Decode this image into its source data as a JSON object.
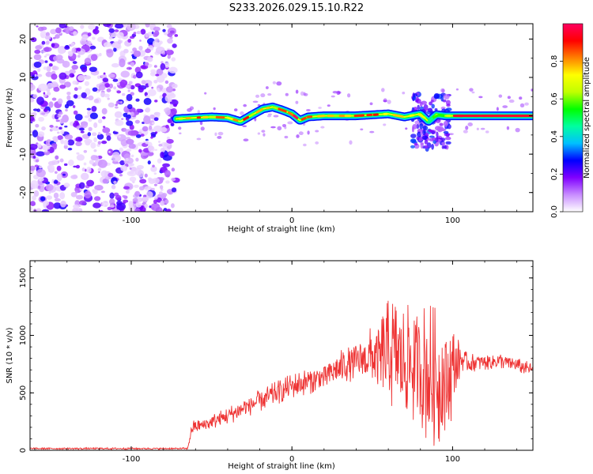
{
  "title": "S233.2026.029.15.10.R22",
  "chart_data": [
    {
      "type": "heatmap",
      "name": "spectrogram",
      "xlabel": "Height of straight line (km)",
      "ylabel": "Frequency (Hz)",
      "xlim": [
        -163,
        150
      ],
      "ylim": [
        -25,
        24
      ],
      "xticks": [
        -100,
        0,
        100
      ],
      "xtick_labels": [
        "-100",
        "0",
        "100"
      ],
      "yticks": [
        -20,
        -10,
        0,
        10,
        20
      ],
      "ytick_labels": [
        "-20",
        "-10",
        "0",
        "10",
        "20"
      ],
      "noise_region_x": [
        -163,
        -72
      ],
      "signal_start_x": -72,
      "ridge": {
        "x": [
          -72,
          -60,
          -50,
          -40,
          -32,
          -25,
          -18,
          -12,
          -6,
          0,
          5,
          10,
          20,
          40,
          60,
          70,
          80,
          85,
          90,
          95,
          100,
          110,
          130,
          150
        ],
        "freq": [
          -0.8,
          -0.5,
          -0.3,
          -0.5,
          -1.5,
          0.2,
          1.8,
          2.3,
          1.5,
          0.5,
          -1.2,
          -0.3,
          0.0,
          0.0,
          0.5,
          -0.3,
          0.5,
          -1.5,
          0.3,
          0.0,
          0.0,
          0.0,
          0.0,
          0.0
        ]
      },
      "colorbar": {
        "label": "Normalized spectral amplitude",
        "range": [
          0,
          1
        ],
        "ticks": [
          0.0,
          0.2,
          0.4,
          0.6,
          0.8
        ],
        "tick_labels": [
          "0.0",
          "0.2",
          "0.4",
          "0.6",
          "0.8"
        ],
        "colors": [
          "#ffffff",
          "#c88cff",
          "#8000ff",
          "#0000ff",
          "#00c0ff",
          "#00ffa0",
          "#00ff00",
          "#c0ff00",
          "#ffff00",
          "#ff8000",
          "#ff0000",
          "#ff0060"
        ]
      }
    },
    {
      "type": "line",
      "name": "snr",
      "xlabel": "Height of straight line (km)",
      "ylabel": "SNR (10 * v/v)",
      "xlim": [
        -163,
        150
      ],
      "ylim": [
        0,
        1650
      ],
      "xticks": [
        -100,
        0,
        100
      ],
      "xtick_labels": [
        "-100",
        "0",
        "100"
      ],
      "yticks": [
        0,
        500,
        1000,
        1500
      ],
      "ytick_labels": [
        "0",
        "500",
        "1000",
        "1500"
      ],
      "color": "#ee3333",
      "series_envelope": {
        "x": [
          -163,
          -65,
          -62,
          -55,
          -40,
          -28,
          -20,
          0,
          20,
          30,
          40,
          45,
          48,
          52,
          55,
          58,
          62,
          66,
          70,
          74,
          78,
          82,
          86,
          90,
          94,
          98,
          100,
          104,
          106,
          110,
          130,
          150
        ],
        "mean": [
          15,
          15,
          200,
          220,
          300,
          380,
          430,
          560,
          640,
          720,
          780,
          800,
          820,
          780,
          800,
          820,
          850,
          800,
          780,
          750,
          720,
          700,
          650,
          620,
          600,
          620,
          700,
          780,
          790,
          760,
          780,
          700
        ],
        "amplitude": [
          8,
          8,
          60,
          60,
          80,
          90,
          100,
          110,
          120,
          150,
          170,
          200,
          250,
          300,
          380,
          450,
          520,
          500,
          480,
          520,
          550,
          600,
          650,
          620,
          550,
          500,
          400,
          200,
          100,
          80,
          70,
          60
        ]
      }
    }
  ]
}
